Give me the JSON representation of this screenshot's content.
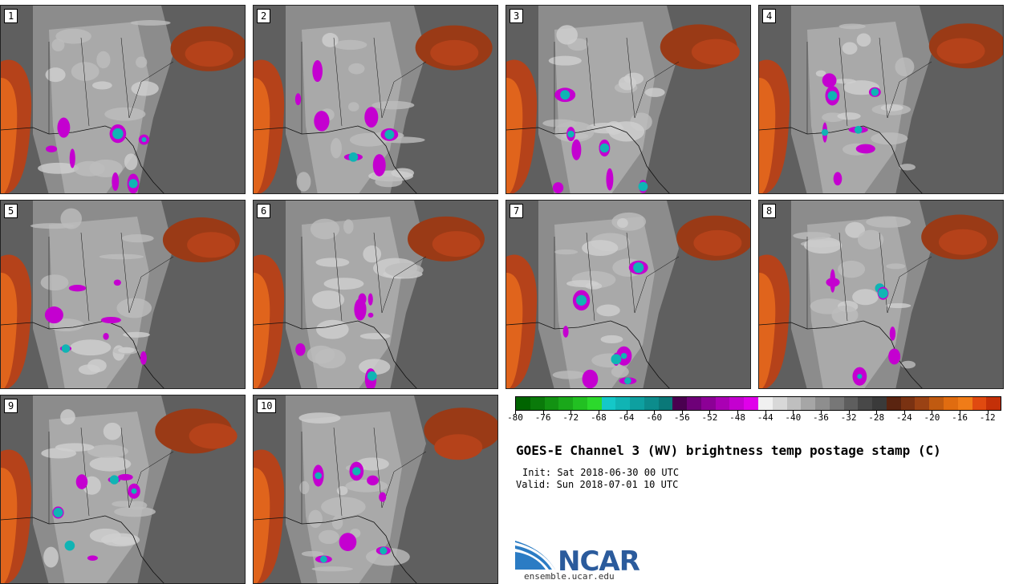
{
  "chart_data": {
    "type": "heatmap",
    "title": "GOES-E Channel 3 (WV) brightness temp postage stamp (C)",
    "init": "Init: Sat 2018-06-30 00 UTC",
    "valid": "Valid: Sun 2018-07-01 10 UTC",
    "members": [
      "1",
      "2",
      "3",
      "4",
      "5",
      "6",
      "7",
      "8",
      "9",
      "10"
    ],
    "colorbar": {
      "ticks": [
        "-80",
        "-76",
        "-72",
        "-68",
        "-64",
        "-60",
        "-56",
        "-52",
        "-48",
        "-44",
        "-40",
        "-36",
        "-32",
        "-28",
        "-24",
        "-20",
        "-16",
        "-12"
      ],
      "range": [
        -80,
        -10
      ],
      "colors": [
        "#006400",
        "#0a7a0a",
        "#129212",
        "#1aa81a",
        "#22c022",
        "#2cd92c",
        "#14c8c8",
        "#10b4b4",
        "#0ea0a0",
        "#0c8c8c",
        "#0a7878",
        "#4a0050",
        "#6e0078",
        "#8c0096",
        "#aa00b4",
        "#c400d0",
        "#e000ea",
        "#f0f0f0",
        "#d8d8d8",
        "#bfbfbf",
        "#a6a6a6",
        "#8e8e8e",
        "#777777",
        "#5e5e5e",
        "#484848",
        "#3a3a3a",
        "#5a2410",
        "#7a3212",
        "#9a4214",
        "#c05a10",
        "#e06c10",
        "#f07c18",
        "#e04a10",
        "#c43008"
      ]
    }
  },
  "logo": {
    "name": "NCAR",
    "url": "ensemble.ucar.edu"
  }
}
